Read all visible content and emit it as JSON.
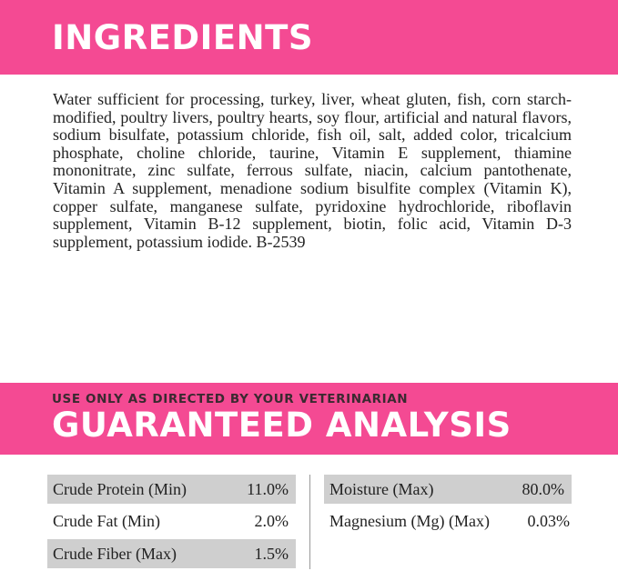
{
  "ingredients": {
    "title": "INGREDIENTS",
    "text": "Water sufficient for processing, turkey, liver, wheat gluten, fish, corn starch-modified, poultry livers, poultry hearts, soy flour, artificial and natural flavors, sodium bisulfate, potassium chloride, fish oil, salt, added color, tricalcium phosphate, choline chloride, taurine, Vitamin E supplement, thiamine mononitrate, zinc sulfate, ferrous sulfate, niacin, calcium pantothenate, Vitamin A supplement, menadione sodium bisulfite complex (Vitamin K), copper sulfate, manganese sulfate, pyridoxine hydrochloride, riboflavin supplement, Vitamin B-12 supplement, biotin, folic acid, Vitamin D-3 supplement, potassium iodide. B-2539"
  },
  "analysis": {
    "subtitle": "USE ONLY AS DIRECTED BY YOUR VETERINARIAN",
    "title": "GUARANTEED ANALYSIS",
    "left": [
      {
        "label": "Crude Protein (Min)",
        "value": "11.0%"
      },
      {
        "label": "Crude Fat (Min)",
        "value": "2.0%"
      },
      {
        "label": "Crude Fiber (Max)",
        "value": "1.5%"
      }
    ],
    "right": [
      {
        "label": "Moisture (Max)",
        "value": "80.0%"
      },
      {
        "label": "Magnesium (Mg) (Max)",
        "value": "0.03%"
      }
    ]
  },
  "colors": {
    "accent": "#f44a93",
    "row_shade": "#cfcfcf"
  }
}
